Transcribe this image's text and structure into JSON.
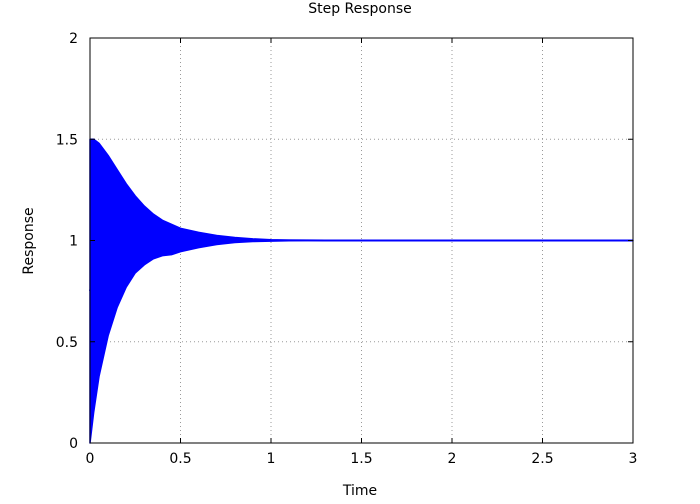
{
  "chart_data": {
    "type": "line",
    "title": "Step Response",
    "xlabel": "Time",
    "ylabel": "Response",
    "xlim": [
      0,
      3
    ],
    "ylim": [
      0,
      2
    ],
    "xticks": [
      0,
      0.5,
      1,
      1.5,
      2,
      2.5,
      3
    ],
    "xtick_labels": [
      "0",
      "0.5",
      "1",
      "1.5",
      "2",
      "2.5",
      "3"
    ],
    "yticks": [
      0,
      0.5,
      1,
      1.5,
      2
    ],
    "ytick_labels": [
      "0",
      "0.5",
      "1",
      "1.5",
      "2"
    ],
    "grid": true,
    "grid_style": "dotted",
    "series": [
      {
        "color": "#0000ff",
        "style": "high-frequency oscillation filling the band between the envelopes",
        "upper_envelope": {
          "x": [
            0,
            0.02,
            0.05,
            0.1,
            0.15,
            0.2,
            0.25,
            0.3,
            0.35,
            0.4,
            0.45,
            0.5,
            0.6,
            0.7,
            0.8,
            0.9,
            1.0,
            1.1,
            1.2,
            1.3,
            1.5,
            2.0,
            2.5,
            3.0
          ],
          "y": [
            1.5,
            1.5,
            1.48,
            1.42,
            1.35,
            1.28,
            1.22,
            1.17,
            1.13,
            1.1,
            1.08,
            1.06,
            1.04,
            1.025,
            1.015,
            1.008,
            1.004,
            1.002,
            1.001,
            1.0,
            1.0,
            1.0,
            1.0,
            1.0
          ]
        },
        "lower_envelope": {
          "x": [
            0,
            0.02,
            0.05,
            0.1,
            0.15,
            0.2,
            0.25,
            0.3,
            0.35,
            0.4,
            0.45,
            0.5,
            0.6,
            0.7,
            0.8,
            0.9,
            1.0,
            1.1,
            1.2,
            1.3,
            1.5,
            2.0,
            2.5,
            3.0
          ],
          "y": [
            0.0,
            0.15,
            0.33,
            0.53,
            0.67,
            0.77,
            0.84,
            0.88,
            0.91,
            0.925,
            0.93,
            0.945,
            0.965,
            0.98,
            0.99,
            0.995,
            0.997,
            0.999,
            1.0,
            1.0,
            1.0,
            1.0,
            1.0,
            1.0
          ]
        }
      }
    ]
  }
}
